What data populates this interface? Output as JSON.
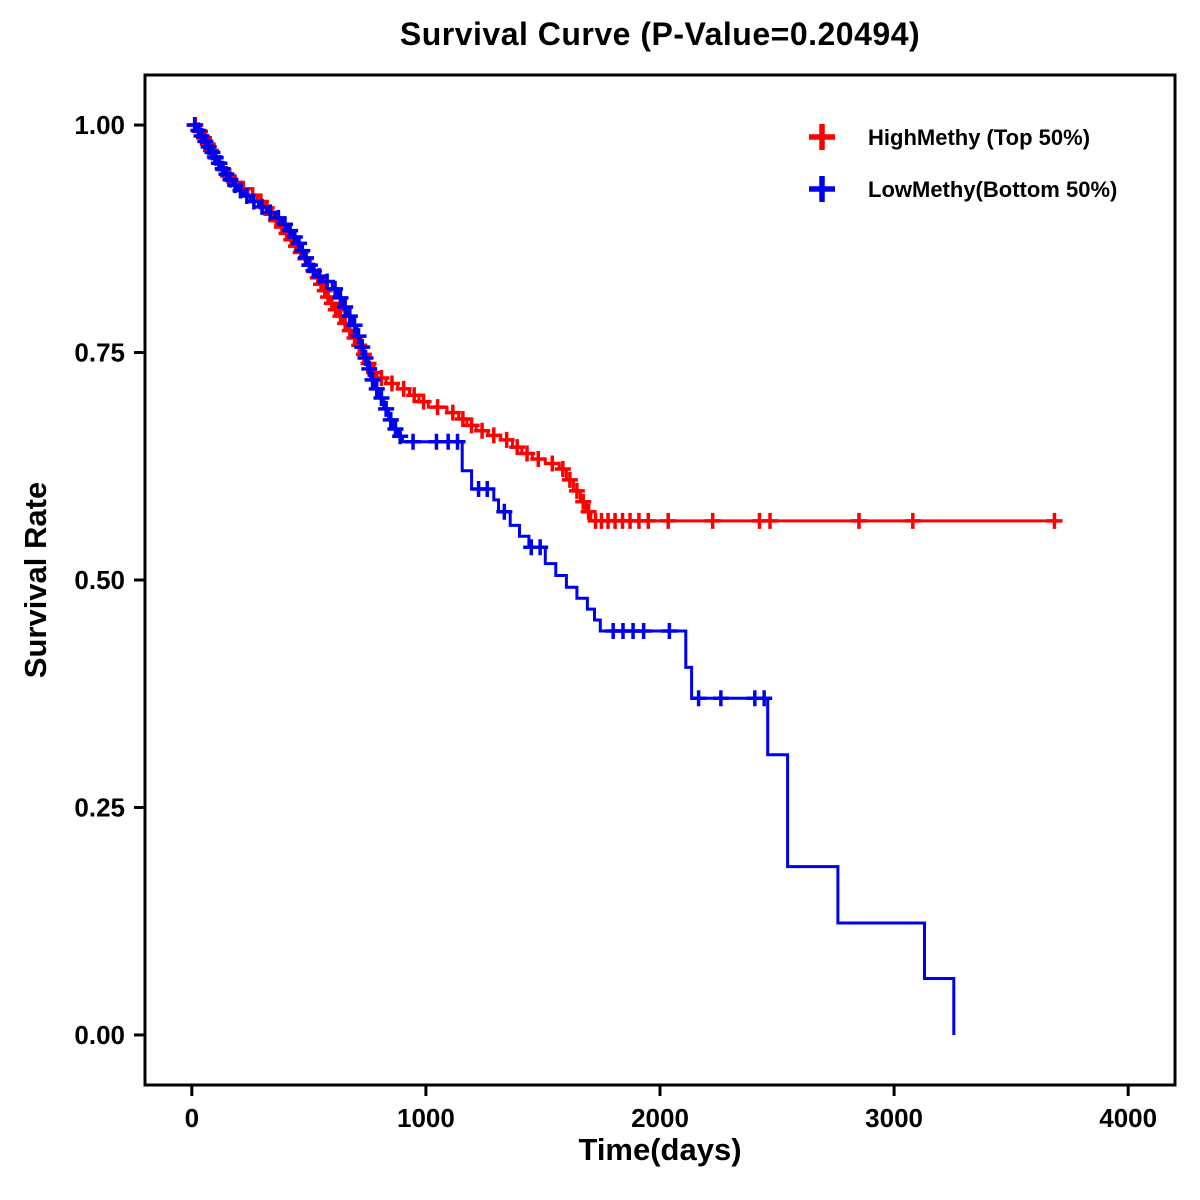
{
  "chart_data": {
    "type": "line",
    "subtype": "kaplan-meier-step-survival",
    "title": "Survival Curve (P-Value=0.20494)",
    "xlabel": "Time(days)",
    "ylabel": "Survival Rate",
    "xlim": [
      -200,
      4200
    ],
    "ylim": [
      -0.055,
      1.055
    ],
    "xticks": [
      0,
      1000,
      2000,
      3000,
      4000
    ],
    "yticks": [
      0.0,
      0.25,
      0.5,
      0.75,
      1.0
    ],
    "grid": false,
    "legend_position": "top-right",
    "series": [
      {
        "id": "high-methy",
        "name": "HighMethy (Top 50%)",
        "color": "#FF0000",
        "steps": [
          [
            0,
            1.0
          ],
          [
            25,
            0.993
          ],
          [
            45,
            0.986
          ],
          [
            60,
            0.979
          ],
          [
            75,
            0.972
          ],
          [
            90,
            0.965
          ],
          [
            105,
            0.958
          ],
          [
            125,
            0.951
          ],
          [
            145,
            0.944
          ],
          [
            170,
            0.937
          ],
          [
            200,
            0.93
          ],
          [
            240,
            0.923
          ],
          [
            280,
            0.916
          ],
          [
            310,
            0.909
          ],
          [
            330,
            0.902
          ],
          [
            350,
            0.895
          ],
          [
            370,
            0.888
          ],
          [
            395,
            0.881
          ],
          [
            415,
            0.874
          ],
          [
            435,
            0.867
          ],
          [
            455,
            0.86
          ],
          [
            475,
            0.853
          ],
          [
            495,
            0.846
          ],
          [
            515,
            0.839
          ],
          [
            530,
            0.832
          ],
          [
            545,
            0.825
          ],
          [
            560,
            0.818
          ],
          [
            575,
            0.811
          ],
          [
            590,
            0.804
          ],
          [
            605,
            0.797
          ],
          [
            625,
            0.79
          ],
          [
            645,
            0.782
          ],
          [
            665,
            0.774
          ],
          [
            685,
            0.766
          ],
          [
            705,
            0.758
          ],
          [
            725,
            0.748
          ],
          [
            745,
            0.738
          ],
          [
            765,
            0.728
          ],
          [
            790,
            0.722
          ],
          [
            830,
            0.716
          ],
          [
            880,
            0.71
          ],
          [
            930,
            0.703
          ],
          [
            970,
            0.696
          ],
          [
            1010,
            0.69
          ],
          [
            1090,
            0.684
          ],
          [
            1140,
            0.677
          ],
          [
            1175,
            0.67
          ],
          [
            1215,
            0.664
          ],
          [
            1265,
            0.659
          ],
          [
            1320,
            0.654
          ],
          [
            1370,
            0.646
          ],
          [
            1410,
            0.639
          ],
          [
            1455,
            0.633
          ],
          [
            1510,
            0.628
          ],
          [
            1570,
            0.622
          ],
          [
            1600,
            0.61
          ],
          [
            1630,
            0.598
          ],
          [
            1660,
            0.586
          ],
          [
            1685,
            0.575
          ],
          [
            1705,
            0.565
          ],
          [
            3700,
            0.565
          ]
        ],
        "censors": [
          [
            15,
            1.0
          ],
          [
            35,
            0.993
          ],
          [
            52,
            0.986
          ],
          [
            68,
            0.979
          ],
          [
            82,
            0.972
          ],
          [
            98,
            0.965
          ],
          [
            115,
            0.958
          ],
          [
            135,
            0.951
          ],
          [
            155,
            0.944
          ],
          [
            185,
            0.937
          ],
          [
            220,
            0.93
          ],
          [
            260,
            0.923
          ],
          [
            295,
            0.916
          ],
          [
            320,
            0.909
          ],
          [
            340,
            0.902
          ],
          [
            360,
            0.895
          ],
          [
            385,
            0.888
          ],
          [
            405,
            0.881
          ],
          [
            425,
            0.874
          ],
          [
            445,
            0.867
          ],
          [
            465,
            0.86
          ],
          [
            485,
            0.853
          ],
          [
            505,
            0.846
          ],
          [
            522,
            0.839
          ],
          [
            538,
            0.832
          ],
          [
            552,
            0.825
          ],
          [
            568,
            0.818
          ],
          [
            582,
            0.811
          ],
          [
            598,
            0.804
          ],
          [
            615,
            0.797
          ],
          [
            635,
            0.79
          ],
          [
            655,
            0.782
          ],
          [
            675,
            0.774
          ],
          [
            695,
            0.766
          ],
          [
            715,
            0.758
          ],
          [
            735,
            0.748
          ],
          [
            755,
            0.738
          ],
          [
            778,
            0.728
          ],
          [
            810,
            0.722
          ],
          [
            855,
            0.716
          ],
          [
            905,
            0.71
          ],
          [
            950,
            0.703
          ],
          [
            990,
            0.696
          ],
          [
            1050,
            0.69
          ],
          [
            1115,
            0.684
          ],
          [
            1158,
            0.677
          ],
          [
            1195,
            0.67
          ],
          [
            1240,
            0.664
          ],
          [
            1290,
            0.659
          ],
          [
            1345,
            0.654
          ],
          [
            1390,
            0.646
          ],
          [
            1432,
            0.639
          ],
          [
            1480,
            0.633
          ],
          [
            1540,
            0.628
          ],
          [
            1585,
            0.622
          ],
          [
            1615,
            0.61
          ],
          [
            1645,
            0.598
          ],
          [
            1672,
            0.586
          ],
          [
            1695,
            0.575
          ],
          [
            1725,
            0.565
          ],
          [
            1750,
            0.565
          ],
          [
            1778,
            0.565
          ],
          [
            1808,
            0.565
          ],
          [
            1840,
            0.565
          ],
          [
            1872,
            0.565
          ],
          [
            1910,
            0.565
          ],
          [
            1950,
            0.565
          ],
          [
            2035,
            0.565
          ],
          [
            2225,
            0.565
          ],
          [
            2425,
            0.565
          ],
          [
            2470,
            0.565
          ],
          [
            2850,
            0.565
          ],
          [
            3080,
            0.565
          ],
          [
            3685,
            0.565
          ]
        ]
      },
      {
        "id": "low-methy",
        "name": "LowMethy(Bottom 50%)",
        "color": "#0000F0",
        "steps": [
          [
            0,
            1.0
          ],
          [
            20,
            0.994
          ],
          [
            35,
            0.988
          ],
          [
            50,
            0.982
          ],
          [
            65,
            0.976
          ],
          [
            80,
            0.97
          ],
          [
            95,
            0.964
          ],
          [
            110,
            0.958
          ],
          [
            125,
            0.952
          ],
          [
            140,
            0.946
          ],
          [
            155,
            0.94
          ],
          [
            175,
            0.934
          ],
          [
            195,
            0.928
          ],
          [
            220,
            0.922
          ],
          [
            250,
            0.916
          ],
          [
            285,
            0.91
          ],
          [
            320,
            0.904
          ],
          [
            355,
            0.898
          ],
          [
            385,
            0.891
          ],
          [
            410,
            0.884
          ],
          [
            430,
            0.877
          ],
          [
            450,
            0.87
          ],
          [
            465,
            0.862
          ],
          [
            480,
            0.854
          ],
          [
            495,
            0.846
          ],
          [
            510,
            0.84
          ],
          [
            530,
            0.834
          ],
          [
            560,
            0.828
          ],
          [
            600,
            0.82
          ],
          [
            625,
            0.81
          ],
          [
            645,
            0.8
          ],
          [
            665,
            0.79
          ],
          [
            685,
            0.78
          ],
          [
            705,
            0.768
          ],
          [
            720,
            0.756
          ],
          [
            735,
            0.744
          ],
          [
            750,
            0.732
          ],
          [
            765,
            0.72
          ],
          [
            780,
            0.71
          ],
          [
            800,
            0.7
          ],
          [
            820,
            0.688
          ],
          [
            840,
            0.676
          ],
          [
            860,
            0.666
          ],
          [
            880,
            0.658
          ],
          [
            900,
            0.652
          ],
          [
            1155,
            0.62
          ],
          [
            1195,
            0.6
          ],
          [
            1290,
            0.588
          ],
          [
            1310,
            0.575
          ],
          [
            1360,
            0.56
          ],
          [
            1400,
            0.548
          ],
          [
            1440,
            0.536
          ],
          [
            1510,
            0.518
          ],
          [
            1555,
            0.505
          ],
          [
            1600,
            0.492
          ],
          [
            1645,
            0.48
          ],
          [
            1690,
            0.468
          ],
          [
            1720,
            0.456
          ],
          [
            1745,
            0.444
          ],
          [
            2110,
            0.404
          ],
          [
            2135,
            0.37
          ],
          [
            2460,
            0.308
          ],
          [
            2545,
            0.185
          ],
          [
            2760,
            0.123
          ],
          [
            3130,
            0.062
          ],
          [
            3255,
            0.0
          ]
        ],
        "censors": [
          [
            12,
            1.0
          ],
          [
            28,
            0.994
          ],
          [
            42,
            0.988
          ],
          [
            58,
            0.982
          ],
          [
            72,
            0.976
          ],
          [
            88,
            0.97
          ],
          [
            102,
            0.964
          ],
          [
            118,
            0.958
          ],
          [
            132,
            0.952
          ],
          [
            148,
            0.946
          ],
          [
            165,
            0.94
          ],
          [
            185,
            0.934
          ],
          [
            208,
            0.928
          ],
          [
            235,
            0.922
          ],
          [
            265,
            0.916
          ],
          [
            300,
            0.91
          ],
          [
            335,
            0.904
          ],
          [
            370,
            0.898
          ],
          [
            398,
            0.891
          ],
          [
            420,
            0.884
          ],
          [
            440,
            0.877
          ],
          [
            458,
            0.87
          ],
          [
            472,
            0.862
          ],
          [
            488,
            0.854
          ],
          [
            502,
            0.846
          ],
          [
            520,
            0.84
          ],
          [
            545,
            0.834
          ],
          [
            578,
            0.828
          ],
          [
            612,
            0.82
          ],
          [
            635,
            0.81
          ],
          [
            655,
            0.8
          ],
          [
            675,
            0.79
          ],
          [
            695,
            0.78
          ],
          [
            712,
            0.768
          ],
          [
            728,
            0.756
          ],
          [
            742,
            0.744
          ],
          [
            758,
            0.732
          ],
          [
            772,
            0.72
          ],
          [
            790,
            0.71
          ],
          [
            810,
            0.7
          ],
          [
            830,
            0.688
          ],
          [
            850,
            0.676
          ],
          [
            870,
            0.666
          ],
          [
            890,
            0.658
          ],
          [
            945,
            0.652
          ],
          [
            1045,
            0.652
          ],
          [
            1095,
            0.652
          ],
          [
            1135,
            0.652
          ],
          [
            1225,
            0.6
          ],
          [
            1262,
            0.6
          ],
          [
            1335,
            0.575
          ],
          [
            1450,
            0.536
          ],
          [
            1488,
            0.536
          ],
          [
            1800,
            0.444
          ],
          [
            1842,
            0.444
          ],
          [
            1885,
            0.444
          ],
          [
            1930,
            0.444
          ],
          [
            2040,
            0.444
          ],
          [
            2165,
            0.37
          ],
          [
            2260,
            0.37
          ],
          [
            2405,
            0.37
          ],
          [
            2445,
            0.37
          ]
        ]
      }
    ]
  }
}
